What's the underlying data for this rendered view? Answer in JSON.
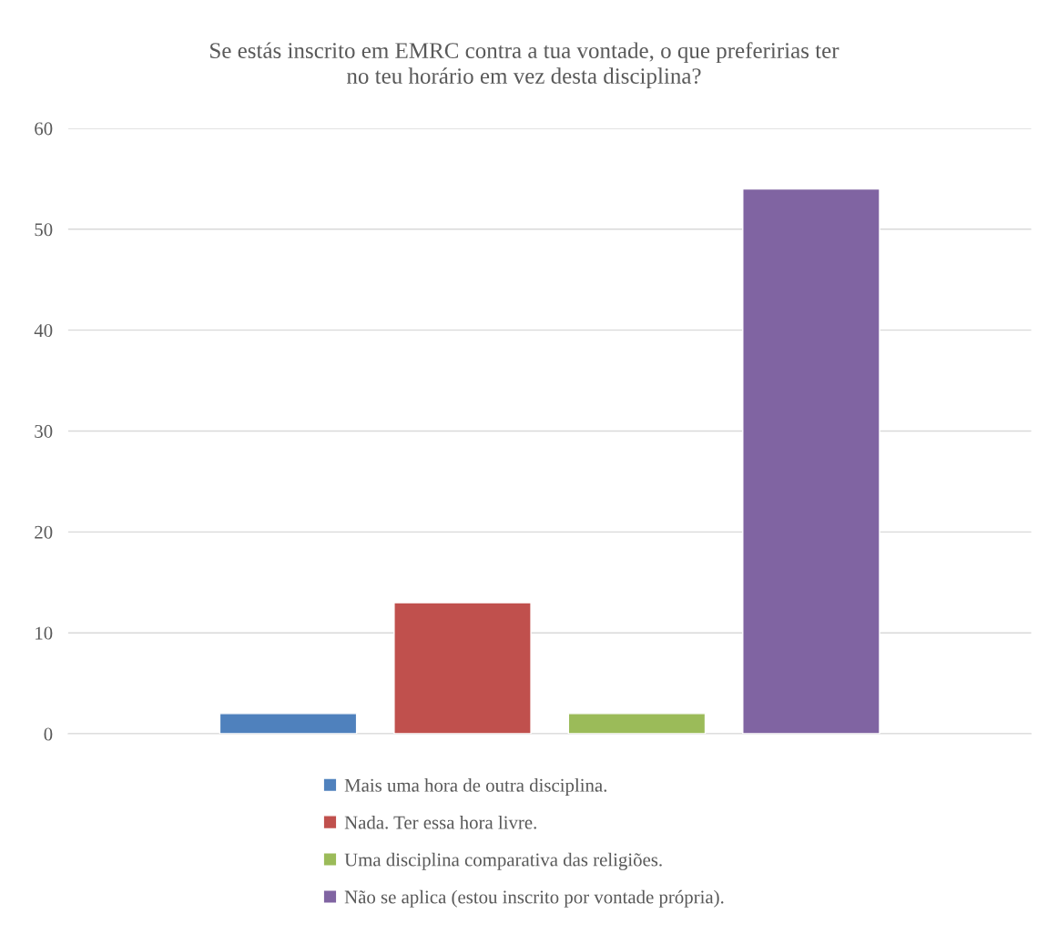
{
  "chart_data": {
    "type": "bar",
    "title": "Se estás inscrito em EMRC contra a tua vontade, o que preferirias ter\nno teu horário em vez desta disciplina?",
    "categories": [
      null
    ],
    "series": [
      {
        "name": "Mais uma hora de outra disciplina.",
        "color": "#4f81bd",
        "values": [
          2
        ]
      },
      {
        "name": "Nada. Ter essa hora livre.",
        "color": "#c0504d",
        "values": [
          13
        ]
      },
      {
        "name": "Uma disciplina comparativa das religiões.",
        "color": "#9bbb59",
        "values": [
          2
        ]
      },
      {
        "name": "Não se aplica (estou inscrito por vontade própria).",
        "color": "#8064a2",
        "values": [
          54
        ]
      }
    ],
    "ylim": [
      0,
      60
    ],
    "yticks": [
      0,
      10,
      20,
      30,
      40,
      50,
      60
    ],
    "grid": "y",
    "legend": "bottom"
  }
}
